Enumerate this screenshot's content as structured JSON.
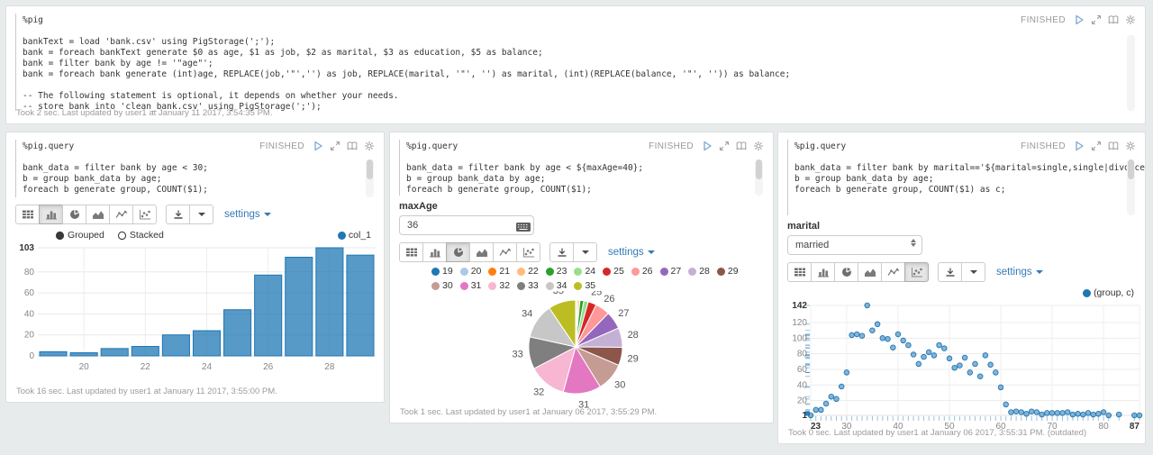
{
  "paragraphs": [
    {
      "status": "FINISHED",
      "code": "%pig\n\nbankText = load 'bank.csv' using PigStorage(';');\nbank = foreach bankText generate $0 as age, $1 as job, $2 as marital, $3 as education, $5 as balance;\nbank = filter bank by age != '\"age\"';\nbank = foreach bank generate (int)age, REPLACE(job,'\"','') as job, REPLACE(marital, '\"', '') as marital, (int)(REPLACE(balance, '\"', '')) as balance;\n\n-- The following statement is optional, it depends on whether your needs.\n-- store bank into 'clean_bank.csv' using PigStorage(';');",
      "footer": "Took 2 sec. Last updated by user1 at January 11 2017, 3:54:35 PM."
    },
    {
      "status": "FINISHED",
      "code": "%pig.query\n\nbank_data = filter bank by age < 30;\nb = group bank_data by age;\nforeach b generate group, COUNT($1);",
      "controls": {
        "grouped": "Grouped",
        "stacked": "Stacked",
        "selected": "Grouped"
      },
      "legend": "col_1",
      "footer": "Took 16 sec. Last updated by user1 at January 11 2017, 3:55:00 PM."
    },
    {
      "status": "FINISHED",
      "code": "%pig.query\n\nbank_data = filter bank by age < ${maxAge=40};\nb = group bank_data by age;\nforeach b generate group, COUNT($1);",
      "form": {
        "label": "maxAge",
        "value": "36"
      },
      "footer": "Took 1 sec. Last updated by user1 at January 06 2017, 3:55:29 PM."
    },
    {
      "status": "FINISHED",
      "code": "%pig.query\n\nbank_data = filter bank by marital=='${marital=single,single|divorced|married}';\nb = group bank_data by age;\nforeach b generate group, COUNT($1) as c;",
      "form": {
        "label": "marital",
        "value": "married"
      },
      "legend": "(group, c)",
      "footer": "Took 0 sec. Last updated by user1 at January 06 2017, 3:55:31 PM. (outdated)"
    }
  ],
  "toolbar": {
    "settings": "settings"
  },
  "colors": {
    "accent": "#337ab7",
    "series": "#1f77b4",
    "status_text": "#999999"
  },
  "chart_data": [
    {
      "type": "bar",
      "title": "",
      "xlabel": "",
      "ylabel": "",
      "series": [
        {
          "name": "col_1",
          "color": "#1f77b4"
        }
      ],
      "categories": [
        19,
        20,
        21,
        22,
        23,
        24,
        25,
        26,
        27,
        28,
        29
      ],
      "values": [
        4,
        3,
        7,
        9,
        20,
        24,
        44,
        77,
        94,
        103,
        96
      ],
      "ylim": [
        0,
        103
      ],
      "yticks": [
        0,
        20,
        40,
        60,
        80,
        103
      ],
      "xticks": [
        20,
        22,
        24,
        26,
        28
      ],
      "grid": true,
      "legend_position": "top-right",
      "controls": [
        "Grouped",
        "Stacked"
      ],
      "selected_control": "Grouped"
    },
    {
      "type": "pie",
      "title": "",
      "categories": [
        19,
        20,
        21,
        22,
        23,
        24,
        25,
        26,
        27,
        28,
        29,
        30,
        31,
        32,
        33,
        34,
        35
      ],
      "values": [
        4,
        3,
        7,
        9,
        20,
        24,
        44,
        77,
        94,
        103,
        96,
        150,
        200,
        200,
        170,
        185,
        145
      ],
      "colors": [
        "#1f77b4",
        "#aec7e8",
        "#ff7f0e",
        "#ffbb78",
        "#2ca02c",
        "#98df8a",
        "#d62728",
        "#ff9896",
        "#9467bd",
        "#c5b0d5",
        "#8c564b",
        "#c49c94",
        "#e377c2",
        "#f7b6d2",
        "#7f7f7f",
        "#c7c7c7",
        "#bcbd22"
      ],
      "label_threshold": 0.02,
      "legend_position": "top"
    },
    {
      "type": "scatter",
      "title": "",
      "series": [
        {
          "name": "(group, c)",
          "color": "#1f77b4"
        }
      ],
      "points": [
        [
          23,
          1
        ],
        [
          24,
          8
        ],
        [
          25,
          8
        ],
        [
          26,
          16
        ],
        [
          27,
          25
        ],
        [
          28,
          22
        ],
        [
          29,
          38
        ],
        [
          30,
          56
        ],
        [
          31,
          104
        ],
        [
          32,
          105
        ],
        [
          33,
          103
        ],
        [
          34,
          142
        ],
        [
          35,
          110
        ],
        [
          36,
          118
        ],
        [
          37,
          100
        ],
        [
          38,
          99
        ],
        [
          39,
          88
        ],
        [
          40,
          105
        ],
        [
          41,
          97
        ],
        [
          42,
          91
        ],
        [
          43,
          79
        ],
        [
          44,
          67
        ],
        [
          45,
          76
        ],
        [
          46,
          82
        ],
        [
          47,
          78
        ],
        [
          48,
          91
        ],
        [
          49,
          87
        ],
        [
          50,
          74
        ],
        [
          51,
          62
        ],
        [
          52,
          65
        ],
        [
          53,
          75
        ],
        [
          54,
          56
        ],
        [
          55,
          67
        ],
        [
          56,
          51
        ],
        [
          57,
          78
        ],
        [
          58,
          66
        ],
        [
          59,
          56
        ],
        [
          60,
          37
        ],
        [
          61,
          15
        ],
        [
          62,
          5
        ],
        [
          63,
          6
        ],
        [
          64,
          5
        ],
        [
          65,
          3
        ],
        [
          66,
          6
        ],
        [
          67,
          5
        ],
        [
          68,
          2
        ],
        [
          69,
          4
        ],
        [
          70,
          4
        ],
        [
          71,
          4
        ],
        [
          72,
          4
        ],
        [
          73,
          5
        ],
        [
          74,
          2
        ],
        [
          75,
          3
        ],
        [
          76,
          2
        ],
        [
          77,
          4
        ],
        [
          78,
          2
        ],
        [
          79,
          3
        ],
        [
          80,
          5
        ],
        [
          81,
          1
        ],
        [
          83,
          2
        ],
        [
          86,
          1
        ],
        [
          87,
          1
        ]
      ],
      "xlim": [
        23,
        87
      ],
      "ylim": [
        1,
        142
      ],
      "xticks": [
        23,
        30,
        40,
        50,
        60,
        70,
        80,
        87
      ],
      "yticks": [
        1,
        20,
        40,
        60,
        80,
        100,
        120,
        142
      ],
      "grid": true,
      "rug": true,
      "legend_position": "top-right"
    }
  ]
}
